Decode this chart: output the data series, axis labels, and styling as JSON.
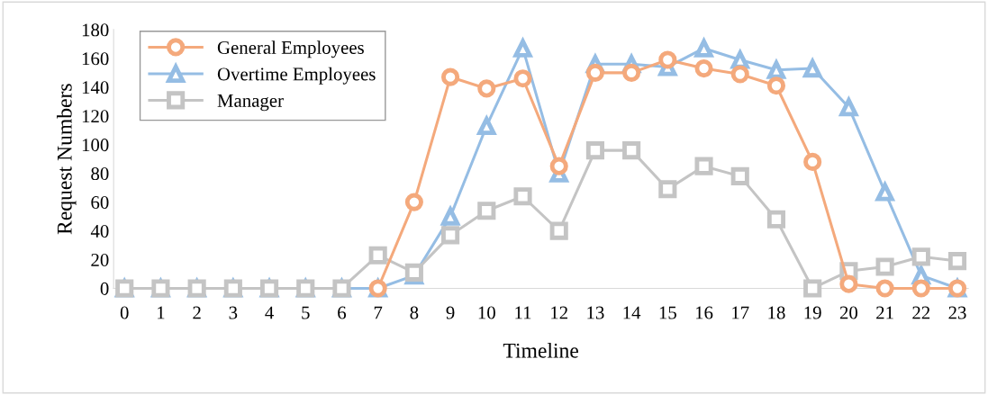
{
  "chart_data": {
    "type": "line",
    "xlabel": "Timeline",
    "ylabel": "Request Numbers",
    "categories": [
      "0",
      "1",
      "2",
      "3",
      "4",
      "5",
      "6",
      "7",
      "8",
      "9",
      "10",
      "11",
      "12",
      "13",
      "14",
      "15",
      "16",
      "17",
      "18",
      "19",
      "20",
      "21",
      "22",
      "23"
    ],
    "ylim": [
      0,
      180
    ],
    "yticks": [
      0,
      20,
      40,
      60,
      80,
      100,
      120,
      140,
      160,
      180
    ],
    "grid": false,
    "legend": "top left",
    "series": [
      {
        "name": "General Employees",
        "color": "#f4a97c",
        "marker": "circle",
        "values": [
          null,
          null,
          null,
          null,
          null,
          null,
          null,
          0,
          60,
          147,
          139,
          146,
          85,
          150,
          150,
          159,
          153,
          149,
          141,
          88,
          3,
          0,
          0,
          0
        ]
      },
      {
        "name": "Overtime Employees",
        "color": "#95bde4",
        "marker": "triangle",
        "values": [
          0,
          0,
          0,
          0,
          0,
          0,
          0,
          0,
          9,
          50,
          113,
          167,
          80,
          156,
          156,
          154,
          167,
          159,
          152,
          153,
          126,
          67,
          9,
          0
        ]
      },
      {
        "name": "Manager",
        "color": "#c4c4c4",
        "marker": "square",
        "values": [
          0,
          0,
          0,
          0,
          0,
          0,
          0,
          23,
          11,
          37,
          54,
          64,
          40,
          96,
          96,
          69,
          85,
          78,
          48,
          0,
          12,
          15,
          22,
          19
        ]
      }
    ]
  }
}
